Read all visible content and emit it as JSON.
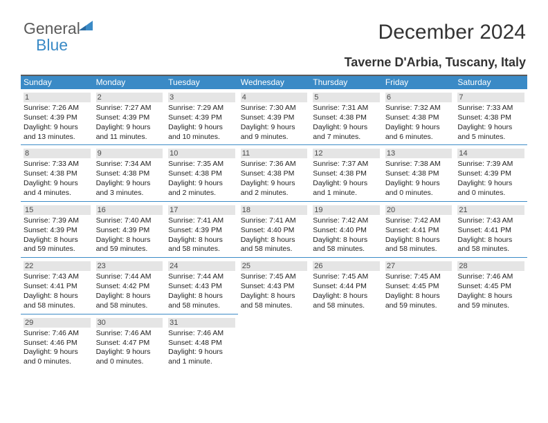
{
  "logo": {
    "word1": "General",
    "word2": "Blue"
  },
  "title": "December 2024",
  "subtitle": "Taverne D'Arbia, Tuscany, Italy",
  "colors": {
    "accent": "#3a8ac6",
    "header_text": "#ffffff",
    "daynum_bg": "#e5e5e5",
    "top_border": "#5a5a5a",
    "logo_gray": "#5a5a5a"
  },
  "weekdays": [
    "Sunday",
    "Monday",
    "Tuesday",
    "Wednesday",
    "Thursday",
    "Friday",
    "Saturday"
  ],
  "days": [
    {
      "n": "1",
      "sr": "7:26 AM",
      "ss": "4:39 PM",
      "dh": "9",
      "dm": "13 minutes"
    },
    {
      "n": "2",
      "sr": "7:27 AM",
      "ss": "4:39 PM",
      "dh": "9",
      "dm": "11 minutes"
    },
    {
      "n": "3",
      "sr": "7:29 AM",
      "ss": "4:39 PM",
      "dh": "9",
      "dm": "10 minutes"
    },
    {
      "n": "4",
      "sr": "7:30 AM",
      "ss": "4:39 PM",
      "dh": "9",
      "dm": "9 minutes"
    },
    {
      "n": "5",
      "sr": "7:31 AM",
      "ss": "4:38 PM",
      "dh": "9",
      "dm": "7 minutes"
    },
    {
      "n": "6",
      "sr": "7:32 AM",
      "ss": "4:38 PM",
      "dh": "9",
      "dm": "6 minutes"
    },
    {
      "n": "7",
      "sr": "7:33 AM",
      "ss": "4:38 PM",
      "dh": "9",
      "dm": "5 minutes"
    },
    {
      "n": "8",
      "sr": "7:33 AM",
      "ss": "4:38 PM",
      "dh": "9",
      "dm": "4 minutes"
    },
    {
      "n": "9",
      "sr": "7:34 AM",
      "ss": "4:38 PM",
      "dh": "9",
      "dm": "3 minutes"
    },
    {
      "n": "10",
      "sr": "7:35 AM",
      "ss": "4:38 PM",
      "dh": "9",
      "dm": "2 minutes"
    },
    {
      "n": "11",
      "sr": "7:36 AM",
      "ss": "4:38 PM",
      "dh": "9",
      "dm": "2 minutes"
    },
    {
      "n": "12",
      "sr": "7:37 AM",
      "ss": "4:38 PM",
      "dh": "9",
      "dm": "1 minute"
    },
    {
      "n": "13",
      "sr": "7:38 AM",
      "ss": "4:38 PM",
      "dh": "9",
      "dm": "0 minutes"
    },
    {
      "n": "14",
      "sr": "7:39 AM",
      "ss": "4:39 PM",
      "dh": "9",
      "dm": "0 minutes"
    },
    {
      "n": "15",
      "sr": "7:39 AM",
      "ss": "4:39 PM",
      "dh": "8",
      "dm": "59 minutes"
    },
    {
      "n": "16",
      "sr": "7:40 AM",
      "ss": "4:39 PM",
      "dh": "8",
      "dm": "59 minutes"
    },
    {
      "n": "17",
      "sr": "7:41 AM",
      "ss": "4:39 PM",
      "dh": "8",
      "dm": "58 minutes"
    },
    {
      "n": "18",
      "sr": "7:41 AM",
      "ss": "4:40 PM",
      "dh": "8",
      "dm": "58 minutes"
    },
    {
      "n": "19",
      "sr": "7:42 AM",
      "ss": "4:40 PM",
      "dh": "8",
      "dm": "58 minutes"
    },
    {
      "n": "20",
      "sr": "7:42 AM",
      "ss": "4:41 PM",
      "dh": "8",
      "dm": "58 minutes"
    },
    {
      "n": "21",
      "sr": "7:43 AM",
      "ss": "4:41 PM",
      "dh": "8",
      "dm": "58 minutes"
    },
    {
      "n": "22",
      "sr": "7:43 AM",
      "ss": "4:41 PM",
      "dh": "8",
      "dm": "58 minutes"
    },
    {
      "n": "23",
      "sr": "7:44 AM",
      "ss": "4:42 PM",
      "dh": "8",
      "dm": "58 minutes"
    },
    {
      "n": "24",
      "sr": "7:44 AM",
      "ss": "4:43 PM",
      "dh": "8",
      "dm": "58 minutes"
    },
    {
      "n": "25",
      "sr": "7:45 AM",
      "ss": "4:43 PM",
      "dh": "8",
      "dm": "58 minutes"
    },
    {
      "n": "26",
      "sr": "7:45 AM",
      "ss": "4:44 PM",
      "dh": "8",
      "dm": "58 minutes"
    },
    {
      "n": "27",
      "sr": "7:45 AM",
      "ss": "4:45 PM",
      "dh": "8",
      "dm": "59 minutes"
    },
    {
      "n": "28",
      "sr": "7:46 AM",
      "ss": "4:45 PM",
      "dh": "8",
      "dm": "59 minutes"
    },
    {
      "n": "29",
      "sr": "7:46 AM",
      "ss": "4:46 PM",
      "dh": "9",
      "dm": "0 minutes"
    },
    {
      "n": "30",
      "sr": "7:46 AM",
      "ss": "4:47 PM",
      "dh": "9",
      "dm": "0 minutes"
    },
    {
      "n": "31",
      "sr": "7:46 AM",
      "ss": "4:48 PM",
      "dh": "9",
      "dm": "1 minute"
    }
  ],
  "labels": {
    "sunrise": "Sunrise: ",
    "sunset": "Sunset: ",
    "daylight_pre": "Daylight: ",
    "hours_word": " hours",
    "and_word": "and ",
    "period": "."
  }
}
